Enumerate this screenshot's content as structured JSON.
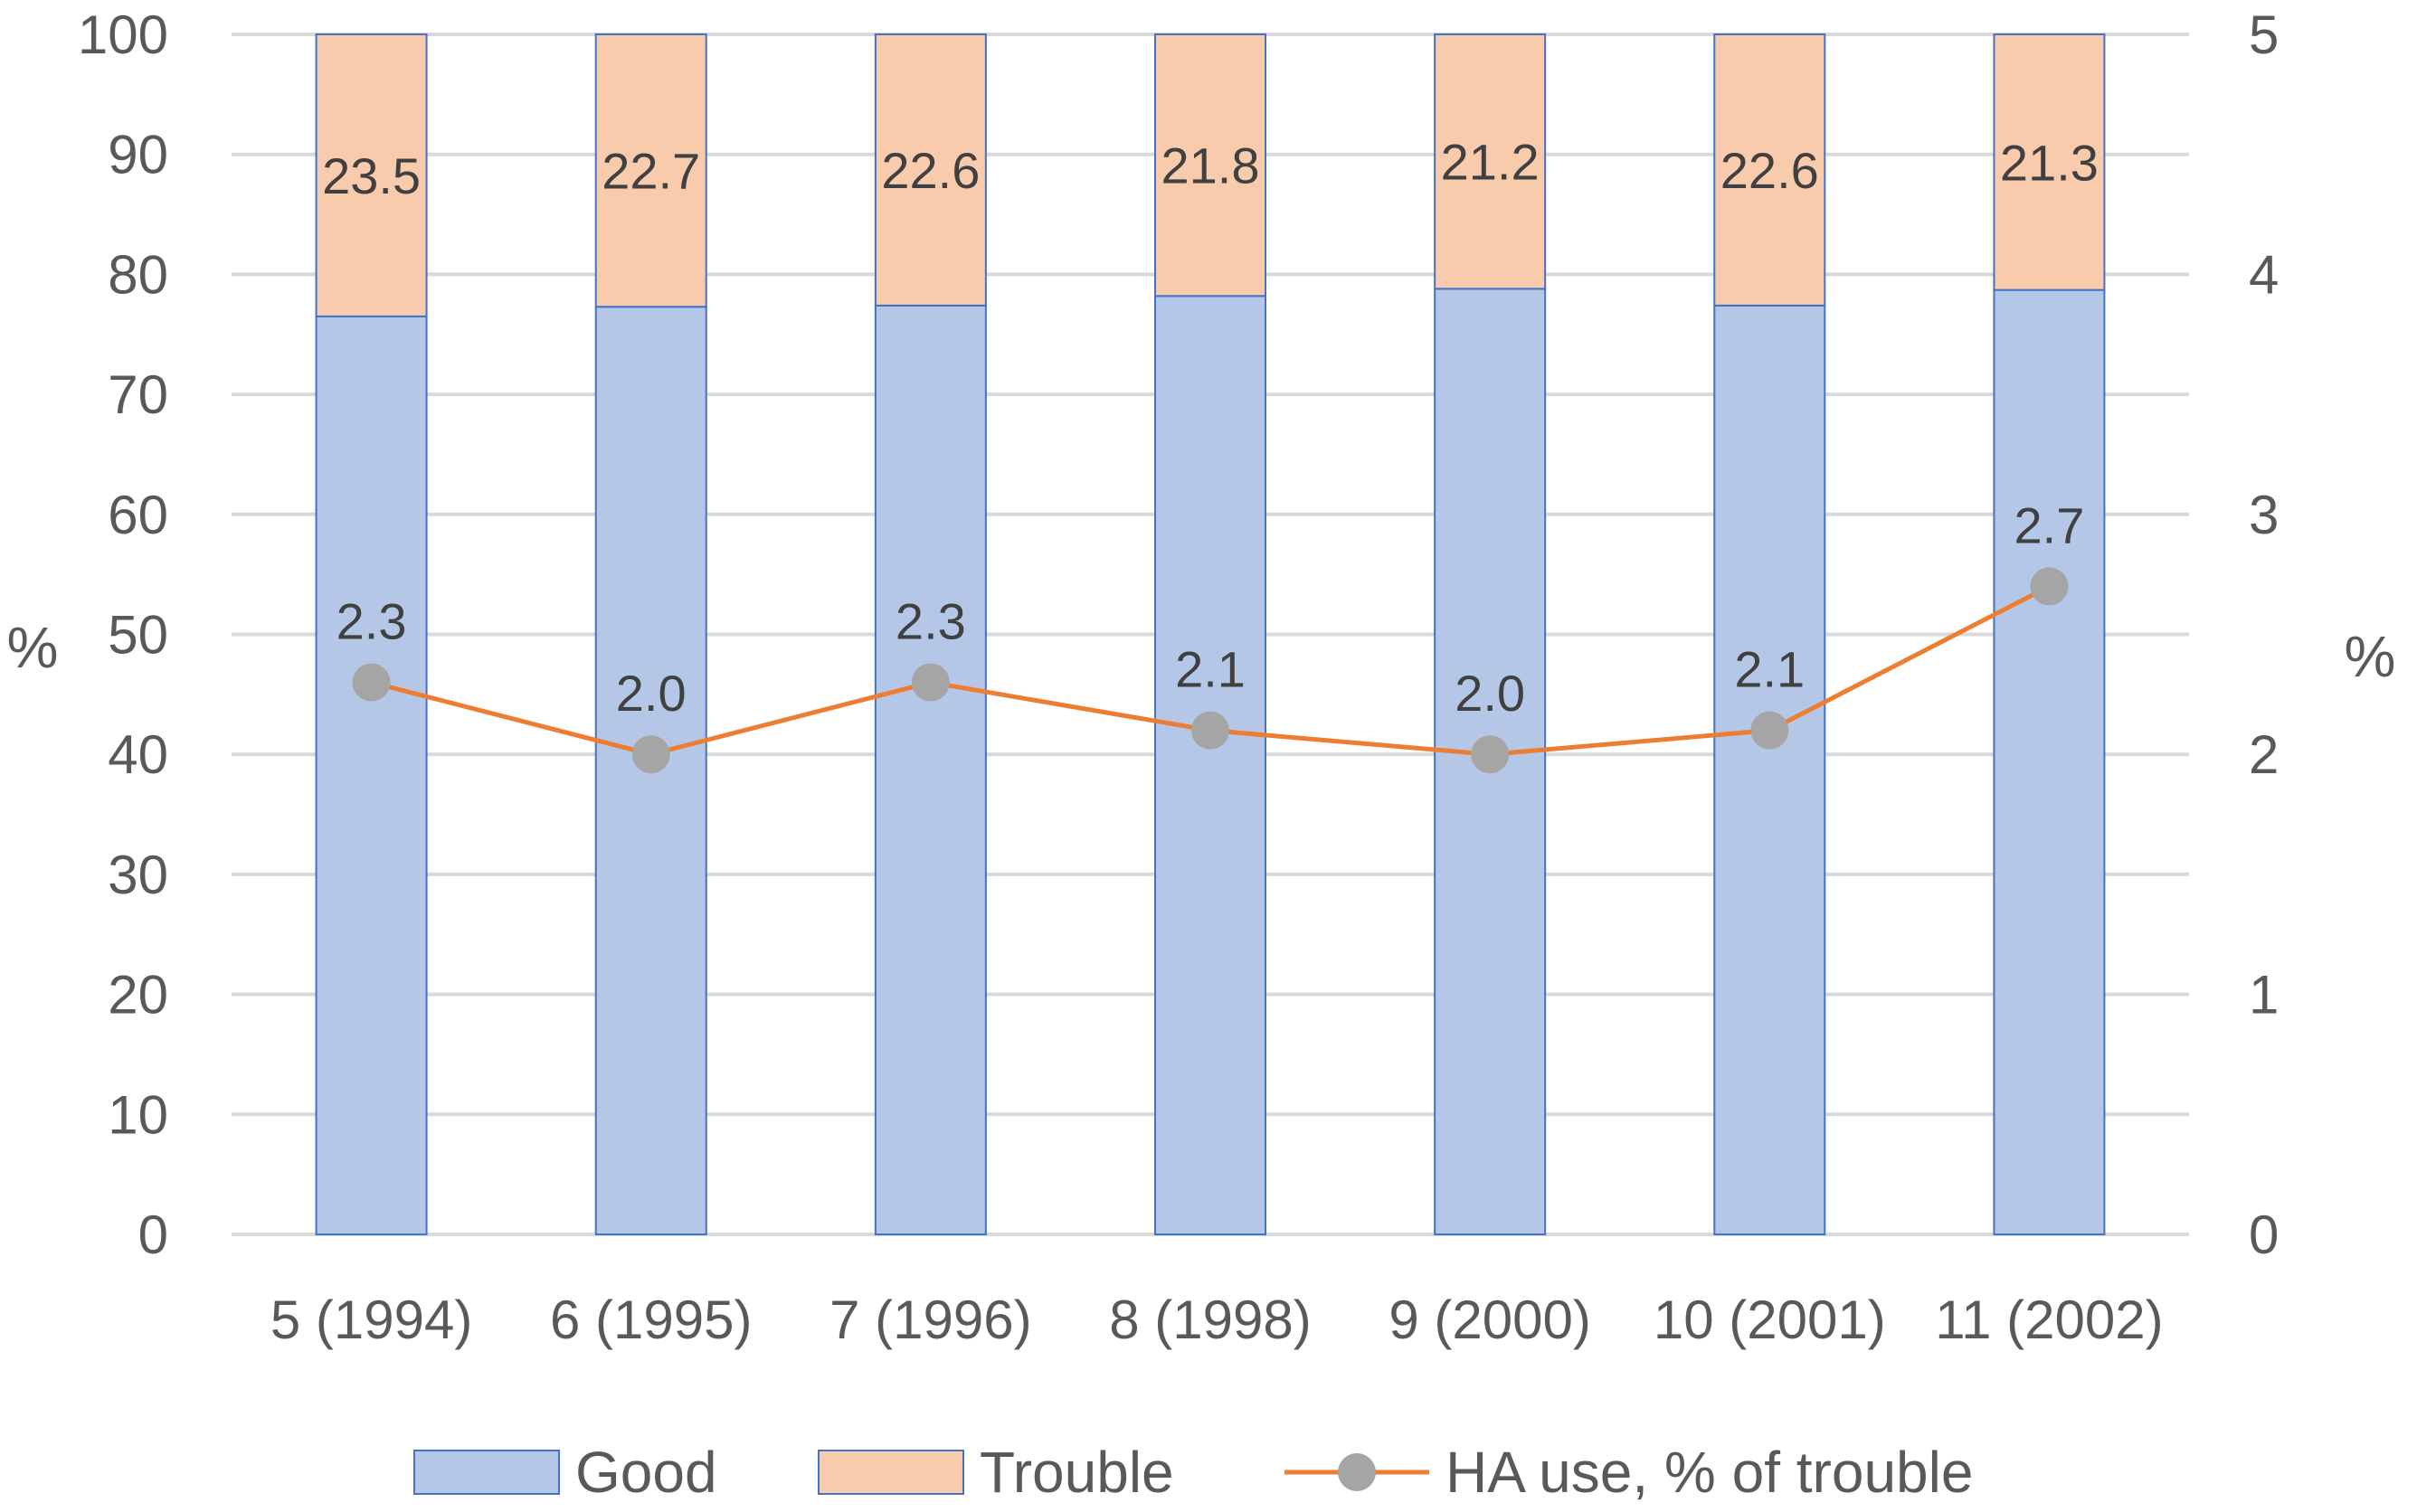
{
  "chart_data": {
    "type": "bar",
    "stacked": true,
    "categories": [
      "5 (1994)",
      "6 (1995)",
      "7 (1996)",
      "8 (1998)",
      "9 (2000)",
      "10 (2001)",
      "11 (2002)"
    ],
    "series": [
      {
        "name": "Good",
        "type": "bar",
        "axis": "left",
        "values": [
          76.5,
          77.3,
          77.4,
          78.2,
          78.8,
          77.4,
          78.7
        ],
        "color": "#b4c7e7",
        "show_labels": false
      },
      {
        "name": "Trouble",
        "type": "bar",
        "axis": "left",
        "values": [
          23.5,
          22.7,
          22.6,
          21.8,
          21.2,
          22.6,
          21.3
        ],
        "color": "#f8cbad",
        "show_labels": true
      },
      {
        "name": "HA use, % of trouble",
        "type": "line",
        "axis": "right",
        "values": [
          2.3,
          2.0,
          2.3,
          2.1,
          2.0,
          2.1,
          2.7
        ],
        "color": "#ed7d31",
        "marker_color": "#a5a5a5",
        "show_labels": true
      }
    ],
    "ylabel": "%",
    "y2label": "%",
    "ylim": [
      0,
      100
    ],
    "y2lim": [
      0,
      5
    ],
    "yticks": [
      "0",
      "10",
      "20",
      "30",
      "40",
      "50",
      "60",
      "70",
      "80",
      "90",
      "100"
    ],
    "y2ticks": [
      "0",
      "1",
      "2",
      "3",
      "4",
      "5"
    ],
    "grid": true,
    "legend_position": "bottom",
    "colors": {
      "bar_border": "#4472c4",
      "grid": "#d9d9d9",
      "text": "#595959"
    }
  }
}
